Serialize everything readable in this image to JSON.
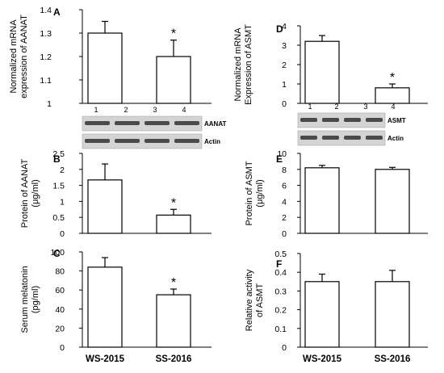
{
  "chart_data": [
    {
      "type": "bar",
      "panel": "A",
      "ylabel_lines": [
        "Normalized mRNA",
        "expression of AANAT"
      ],
      "categories": [
        "WS-2015",
        "SS-2016"
      ],
      "values": [
        1.3,
        1.2
      ],
      "errors": [
        0.05,
        0.07
      ],
      "significance": [
        "",
        "*"
      ],
      "ylim": [
        1,
        1.4
      ],
      "yticks": [
        "1",
        "1.1",
        "1.2",
        "1.3",
        "1.4"
      ],
      "blot": {
        "lanes": [
          "1",
          "2",
          "3",
          "4"
        ],
        "bands": [
          "AANAT",
          "Actin"
        ]
      }
    },
    {
      "type": "bar",
      "panel": "B",
      "ylabel_lines": [
        "Protein of AANAT",
        "(μg/ml)"
      ],
      "categories": [
        "WS-2015",
        "SS-2016"
      ],
      "values": [
        1.67,
        0.57
      ],
      "errors": [
        0.5,
        0.18
      ],
      "significance": [
        "",
        "*"
      ],
      "ylim": [
        0,
        2.5
      ],
      "yticks": [
        "0",
        "0.5",
        "1",
        "1.5",
        "2",
        "2.5"
      ]
    },
    {
      "type": "bar",
      "panel": "C",
      "ylabel_lines": [
        "Serum melatonin",
        "(pg/ml)"
      ],
      "categories": [
        "WS-2015",
        "SS-2016"
      ],
      "values": [
        84,
        55
      ],
      "errors": [
        10,
        6
      ],
      "significance": [
        "",
        "*"
      ],
      "ylim": [
        0,
        100
      ],
      "yticks": [
        "0",
        "20",
        "40",
        "60",
        "80",
        "100"
      ]
    },
    {
      "type": "bar",
      "panel": "D",
      "ylabel_lines": [
        "Normalized mRNA",
        "Expression of ASMT"
      ],
      "categories": [
        "WS-2015",
        "SS-2016"
      ],
      "values": [
        3.2,
        0.8
      ],
      "errors": [
        0.3,
        0.2
      ],
      "significance": [
        "",
        "*"
      ],
      "ylim": [
        0,
        4
      ],
      "yticks": [
        "0",
        "1",
        "2",
        "3",
        "4"
      ],
      "blot": {
        "lanes": [
          "1",
          "2",
          "3",
          "4"
        ],
        "bands": [
          "ASMT",
          "Actin"
        ]
      }
    },
    {
      "type": "bar",
      "panel": "E",
      "ylabel_lines": [
        "Protein of ASMT",
        "(μg/ml)"
      ],
      "categories": [
        "WS-2015",
        "SS-2016"
      ],
      "values": [
        8.2,
        8.0
      ],
      "errors": [
        0.3,
        0.25
      ],
      "significance": [
        "",
        ""
      ],
      "ylim": [
        0,
        10
      ],
      "yticks": [
        "0",
        "2",
        "4",
        "6",
        "8",
        "10"
      ]
    },
    {
      "type": "bar",
      "panel": "F",
      "ylabel_lines": [
        "Relative activity",
        "of ASMT"
      ],
      "categories": [
        "WS-2015",
        "SS-2016"
      ],
      "values": [
        0.35,
        0.35
      ],
      "errors": [
        0.04,
        0.06
      ],
      "significance": [
        "",
        ""
      ],
      "ylim": [
        0,
        0.5
      ],
      "yticks": [
        "0",
        "0.1",
        "0.2",
        "0.3",
        "0.4",
        "0.5"
      ]
    }
  ],
  "colors": {
    "bar_fill": "#ffffff",
    "axis": "#000000",
    "blot_band": "#4a4a4a"
  }
}
